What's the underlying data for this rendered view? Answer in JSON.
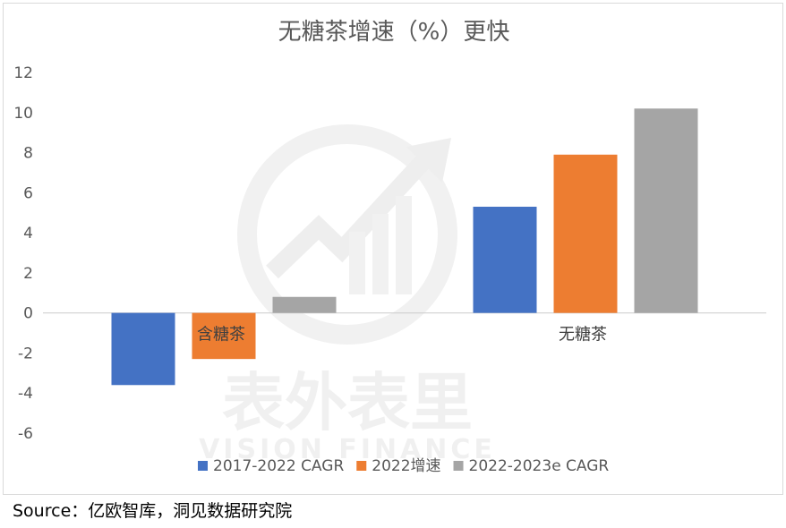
{
  "chart_data": {
    "type": "bar",
    "title": "无糖茶增速（%）更快",
    "categories": [
      "含糖茶",
      "无糖茶"
    ],
    "series": [
      {
        "name": "2017-2022 CAGR",
        "color": "#4472c4",
        "values": [
          -3.6,
          5.3
        ]
      },
      {
        "name": "2022增速",
        "color": "#ed7d31",
        "values": [
          -2.3,
          7.9
        ]
      },
      {
        "name": "2022-2023e CAGR",
        "color": "#a5a5a5",
        "values": [
          0.8,
          10.2
        ]
      }
    ],
    "ylim": [
      -6,
      12
    ],
    "yticks": [
      "12",
      "10",
      "8",
      "6",
      "4",
      "2",
      "0",
      "-2",
      "-4",
      "-6"
    ],
    "xlabel": "",
    "ylabel": "",
    "grid": false,
    "legend_position": "bottom"
  },
  "watermark": {
    "cn": "表外表里",
    "en": "VISION FINANCE"
  },
  "source": "Source：亿欧智库，洞见数据研究院"
}
